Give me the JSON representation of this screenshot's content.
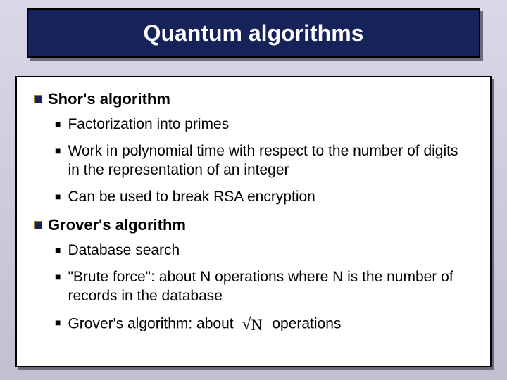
{
  "title": "Quantum algorithms",
  "colors": {
    "title_bg": "#16225a",
    "title_text": "#ffffff",
    "body_bg_top": "#d8d8e8",
    "body_bg_bottom": "#c0c0d0",
    "content_bg": "#ffffff",
    "border": "#000000",
    "shadow": "#6a6a7a",
    "bullet_fill": "#16225a",
    "bullet_border": "#a08030"
  },
  "fonts": {
    "title_size": 32,
    "section_size": 22,
    "sub_size": 21
  },
  "sections": [
    {
      "heading": "Shor's algorithm",
      "items": [
        "Factorization into primes",
        "Work in polynomial time with respect to the number of digits in the representation of an integer",
        "Can be used to break RSA encryption"
      ]
    },
    {
      "heading": "Grover's algorithm",
      "items": [
        "Database search",
        "\"Brute force\": about N operations where N is the number of records in the database"
      ],
      "last_item": {
        "prefix": "Grover's algorithm: about",
        "sqrt_arg": "N",
        "suffix": "operations"
      }
    }
  ]
}
